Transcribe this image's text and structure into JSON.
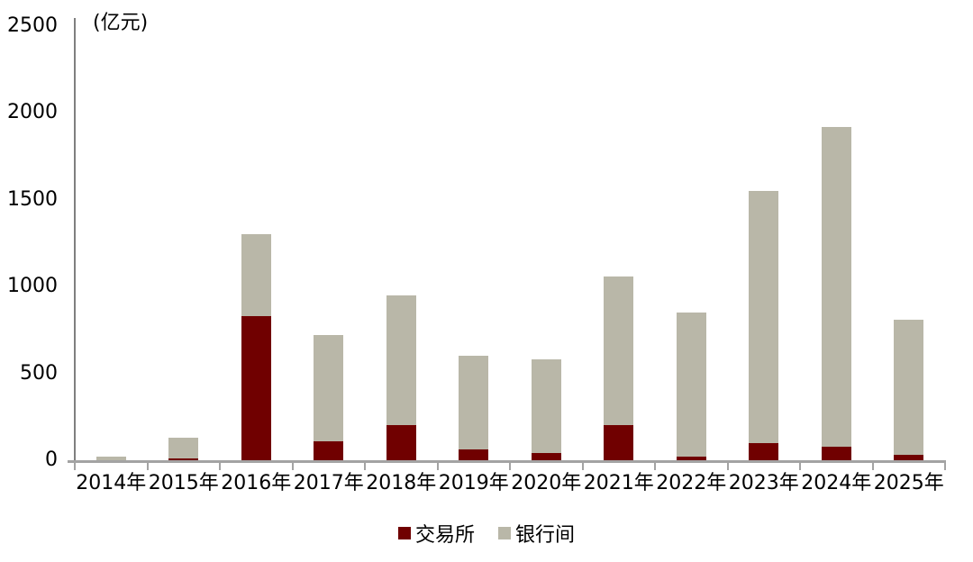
{
  "chart_data": {
    "type": "bar",
    "stacked": true,
    "title": "",
    "unit_label": "(亿元)",
    "categories": [
      "2014年",
      "2015年",
      "2016年",
      "2017年",
      "2018年",
      "2019年",
      "2020年",
      "2021年",
      "2022年",
      "2023年",
      "2024年",
      "2025年"
    ],
    "series": [
      {
        "key": "exchange",
        "name": "交易所",
        "color": "#700000",
        "values": [
          0,
          10,
          830,
          110,
          200,
          60,
          40,
          200,
          20,
          100,
          80,
          30
        ]
      },
      {
        "key": "interbank",
        "name": "银行间",
        "color": "#b9b7a8",
        "values": [
          20,
          120,
          470,
          610,
          750,
          540,
          540,
          860,
          830,
          1450,
          1840,
          780
        ]
      }
    ],
    "totals": [
      20,
      130,
      1300,
      720,
      950,
      600,
      580,
      1060,
      850,
      1550,
      1920,
      810
    ],
    "xlabel": "",
    "ylabel": "",
    "ylim": [
      0,
      2500
    ],
    "yticks": [
      0,
      500,
      1000,
      1500,
      2000,
      2500
    ],
    "grid": false,
    "legend_position": "bottom",
    "axis_color": "#a3a3a3",
    "text_color": "#000000"
  }
}
